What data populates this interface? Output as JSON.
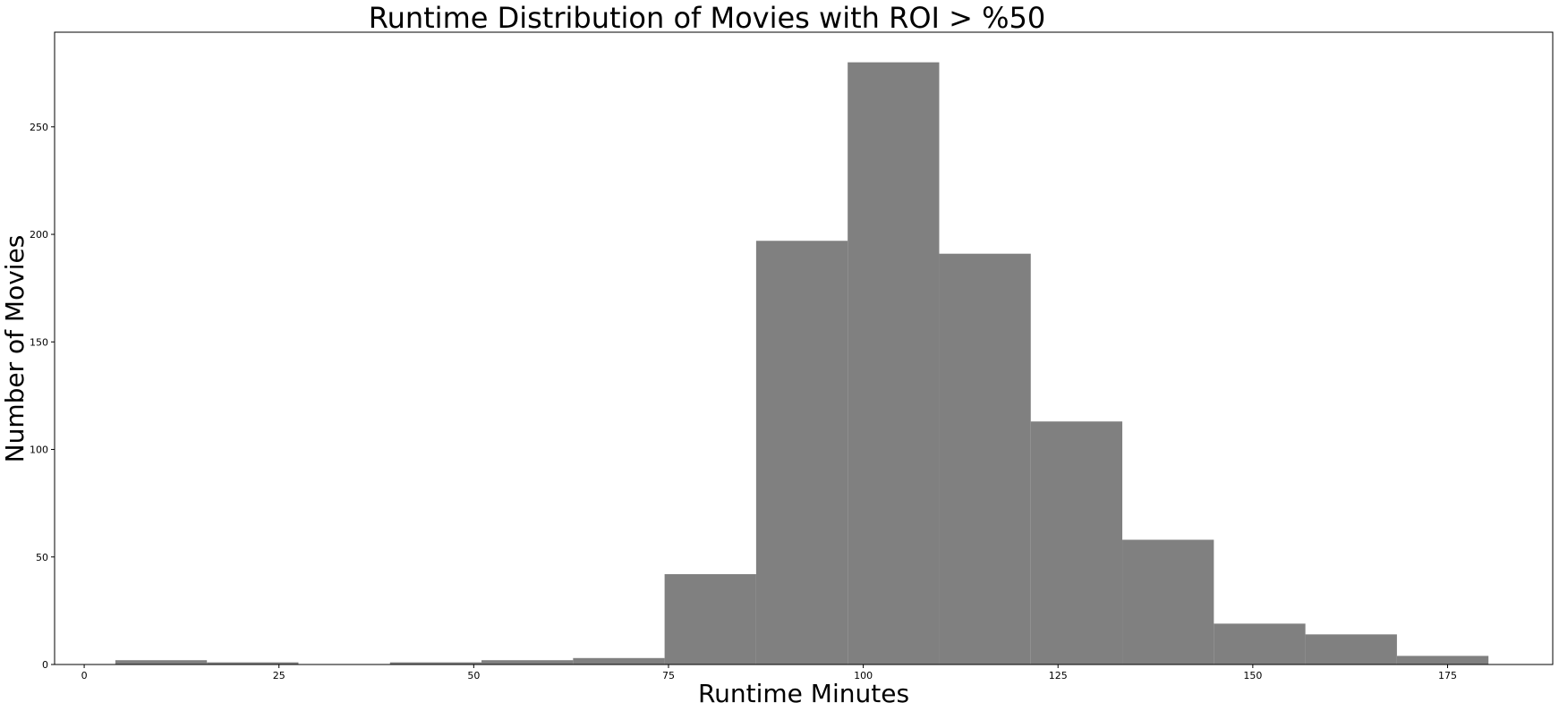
{
  "chart_data": {
    "type": "bar",
    "title": "Runtime Distribution of Movies with ROI > %50",
    "xlabel": "Runtime Minutes",
    "ylabel": "Number of Movies",
    "xlim": [
      -3.8,
      188.5
    ],
    "ylim": [
      0,
      294
    ],
    "x_ticks": [
      0,
      25,
      50,
      75,
      100,
      125,
      150,
      175
    ],
    "y_ticks": [
      0,
      50,
      100,
      150,
      200,
      250
    ],
    "grid": false,
    "bar_color": "#808080",
    "bins": [
      {
        "start": 4,
        "end": 15.75,
        "count": 2
      },
      {
        "start": 15.75,
        "end": 27.5,
        "count": 1
      },
      {
        "start": 27.5,
        "end": 39.25,
        "count": 0
      },
      {
        "start": 39.25,
        "end": 51,
        "count": 1
      },
      {
        "start": 51,
        "end": 62.75,
        "count": 2
      },
      {
        "start": 62.75,
        "end": 74.5,
        "count": 3
      },
      {
        "start": 74.5,
        "end": 86.25,
        "count": 42
      },
      {
        "start": 86.25,
        "end": 98,
        "count": 197
      },
      {
        "start": 98,
        "end": 109.75,
        "count": 280
      },
      {
        "start": 109.75,
        "end": 121.5,
        "count": 191
      },
      {
        "start": 121.5,
        "end": 133.25,
        "count": 113
      },
      {
        "start": 133.25,
        "end": 145,
        "count": 58
      },
      {
        "start": 145,
        "end": 156.75,
        "count": 19
      },
      {
        "start": 156.75,
        "end": 168.5,
        "count": 14
      },
      {
        "start": 168.5,
        "end": 180.25,
        "count": 4
      }
    ]
  }
}
